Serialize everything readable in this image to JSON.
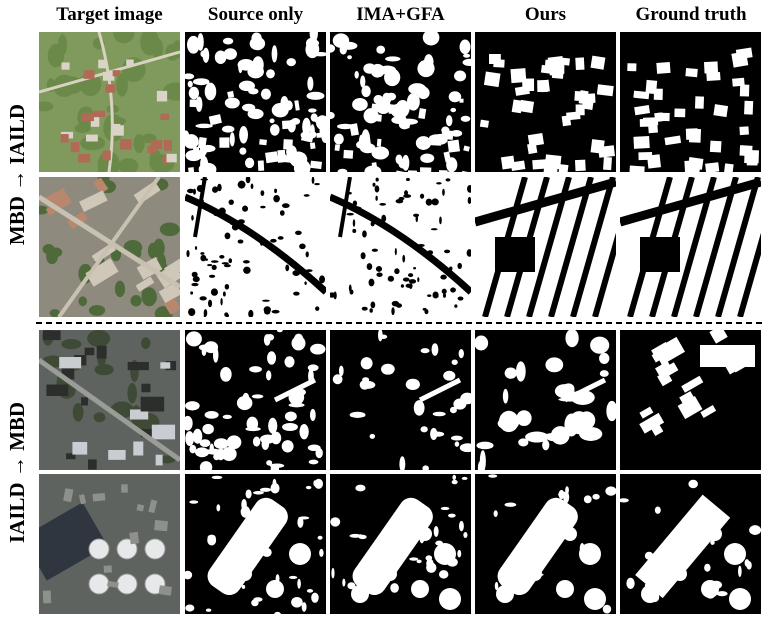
{
  "columns": [
    {
      "key": "target",
      "label": "Target image"
    },
    {
      "key": "source",
      "label": "Source only"
    },
    {
      "key": "imagfa",
      "label": "IMA+GFA"
    },
    {
      "key": "ours",
      "label": "Ours"
    },
    {
      "key": "gt",
      "label": "Ground truth"
    }
  ],
  "groups": [
    {
      "label": "MBD → IAILD"
    },
    {
      "label": "IAILD → MBD"
    }
  ],
  "colors": {
    "background": "#ffffff",
    "mask_bg": "#000000",
    "mask_fg": "#ffffff",
    "rural_field": "#7f9a5c",
    "urban_block": "#8f8a7e",
    "industrial": "#5f635f"
  }
}
